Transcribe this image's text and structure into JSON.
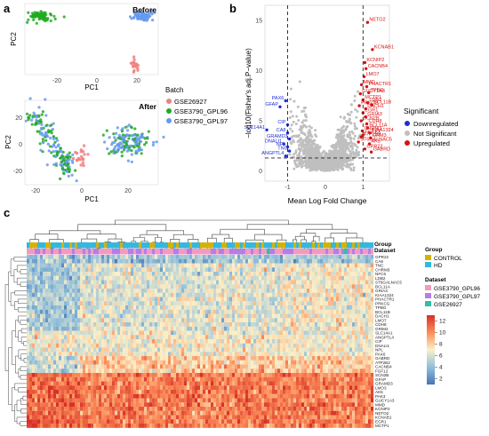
{
  "panel_labels": {
    "a": "a",
    "b": "b",
    "c": "c"
  },
  "colors": {
    "batch_GSE26927": "#f08080",
    "batch_GPL96": "#22aa22",
    "batch_GPL97": "#6699ee",
    "downregulated": "#1f2fd6",
    "not_significant": "#bfbfbf",
    "upregulated": "#dd1111",
    "group_control": "#d4b300",
    "group_hd": "#33b8e0",
    "dataset_gpl96": "#f49ac1",
    "dataset_gpl97": "#b37fe6",
    "dataset_gse26927": "#2fc0a0",
    "heat_high": "#d73027",
    "heat_mid": "#fbf0c8",
    "heat_low": "#4575b4"
  },
  "panel_a": {
    "before_title": "Before",
    "after_title": "After",
    "xlabel": "PC1",
    "ylabel": "PC2",
    "before_xticks": [
      "-20",
      "0",
      "20"
    ],
    "after_xticks": [
      "-20",
      "0",
      "20"
    ],
    "after_yticks": [
      "20",
      "0",
      "-20"
    ],
    "legend_title": "Batch",
    "legend_items": [
      "GSE26927",
      "GSE3790_GPL96",
      "GSE3790_GPL97"
    ]
  },
  "chart_data": [
    {
      "type": "scatter",
      "title": "",
      "xlabel": "Mean Log Fold Change",
      "ylabel": "−log10(Fisher's adj.P−value)",
      "xticks": [
        "-1",
        "0",
        "1"
      ],
      "yticks": [
        "0",
        "5",
        "10",
        "15"
      ],
      "ylim": [
        -1,
        16.5
      ],
      "xlim": [
        -1.6,
        1.7
      ],
      "reference_lines": {
        "x": [
          -1,
          1
        ],
        "y": 1.3
      },
      "legend_title": "Significant",
      "legend_items": [
        "Downregulated",
        "Not Significant",
        "Upregulated"
      ],
      "up_genes": [
        {
          "label": "NETO2",
          "x": 1.12,
          "y": 14.8
        },
        {
          "label": "KCNAB1",
          "x": 1.25,
          "y": 12.1
        },
        {
          "label": "KCNIP2",
          "x": 1.05,
          "y": 10.8
        },
        {
          "label": "CACNB4",
          "x": 1.08,
          "y": 10.2
        },
        {
          "label": "LMO7",
          "x": 1.03,
          "y": 9.4
        },
        {
          "label": "MMD",
          "x": 0.96,
          "y": 8.6
        },
        {
          "label": "PHACTR1",
          "x": 1.1,
          "y": 8.4
        },
        {
          "label": "TPBG",
          "x": 1.15,
          "y": 7.8
        },
        {
          "label": "GUCY1A3",
          "x": 0.93,
          "y": 7.7
        },
        {
          "label": "MCTP1",
          "x": 1.0,
          "y": 7.1
        },
        {
          "label": "LDB2",
          "x": 1.12,
          "y": 6.8
        },
        {
          "label": "BCL11B",
          "x": 1.23,
          "y": 6.6
        },
        {
          "label": "PRKCG",
          "x": 0.9,
          "y": 6.5
        },
        {
          "label": "DACH1",
          "x": 1.07,
          "y": 6.2
        },
        {
          "label": "EGR1",
          "x": 1.0,
          "y": 5.8
        },
        {
          "label": "GRIA3",
          "x": 1.07,
          "y": 5.4
        },
        {
          "label": "SCN2B",
          "x": 0.95,
          "y": 5.0
        },
        {
          "label": "CDH8",
          "x": 1.1,
          "y": 4.7
        },
        {
          "label": "BCL11A",
          "x": 1.12,
          "y": 4.3
        },
        {
          "label": "CHRM3",
          "x": 0.98,
          "y": 4.0
        },
        {
          "label": "KIAA1324",
          "x": 1.18,
          "y": 3.8
        },
        {
          "label": "FGF12",
          "x": 1.0,
          "y": 3.6
        },
        {
          "label": "ATP2B2",
          "x": 0.95,
          "y": 3.4
        },
        {
          "label": "GRM3",
          "x": 1.2,
          "y": 3.3
        },
        {
          "label": "ST6GALNAC5",
          "x": 0.88,
          "y": 2.9
        },
        {
          "label": "AK5",
          "x": 1.17,
          "y": 2.7
        },
        {
          "label": "GPR22",
          "x": 1.05,
          "y": 2.2
        },
        {
          "label": "GABRD",
          "x": 1.22,
          "y": 1.9
        }
      ],
      "down_genes": [
        {
          "label": "PAX6",
          "x": -1.05,
          "y": 7.0
        },
        {
          "label": "GFAP",
          "x": -1.2,
          "y": 6.4
        },
        {
          "label": "CIP",
          "x": -1.0,
          "y": 4.6
        },
        {
          "label": "SLC14A1",
          "x": -1.55,
          "y": 4.1
        },
        {
          "label": "CA8",
          "x": -1.0,
          "y": 3.8
        },
        {
          "label": "GRAMD3",
          "x": -0.95,
          "y": 3.2
        },
        {
          "label": "DNALI1",
          "x": -1.1,
          "y": 2.7
        },
        {
          "label": "NPL",
          "x": -1.0,
          "y": 2.4
        },
        {
          "label": "TNC",
          "x": -0.95,
          "y": 2.0
        },
        {
          "label": "ANGPTL4",
          "x": -1.05,
          "y": 1.5
        }
      ]
    },
    {
      "type": "heatmap",
      "title": "",
      "annotation_rows": [
        "Group",
        "Dataset"
      ],
      "scale_ticks": [
        "12",
        "10",
        "8",
        "6",
        "4",
        "2"
      ],
      "scale_range": [
        1,
        13
      ],
      "group_legend_title": "Group",
      "group_legend": [
        "CONTROL",
        "HD"
      ],
      "dataset_legend_title": "Dataset",
      "dataset_legend": [
        "GSE3790_GPL96",
        "GSE3790_GPL97",
        "GSE26927"
      ],
      "genes": [
        "GPR22",
        "CA8",
        "TNC",
        "CHRM3",
        "NFC6",
        "LDB2",
        "ST6GALNAC5",
        "BCL11A",
        "GRIA3",
        "KIAA1324",
        "PHACTR1",
        "PRKCG",
        "TPBG",
        "BCL11B",
        "DACH1",
        "LMO7",
        "CDH8",
        "GRIM2",
        "SLC14A1",
        "ANGPTL4",
        "CIP",
        "DNALI1",
        "NPL",
        "PAX6",
        "GABRD",
        "ATP2B2",
        "CACNB4",
        "FGF12",
        "SCN2B",
        "GFAP",
        "GRAMD3",
        "LMO3",
        "AK5",
        "PAK3",
        "GUCY1A3",
        "MMD",
        "KCNIP2",
        "NETO2",
        "KCNAB1",
        "EGR1",
        "MCTP1"
      ]
    }
  ]
}
